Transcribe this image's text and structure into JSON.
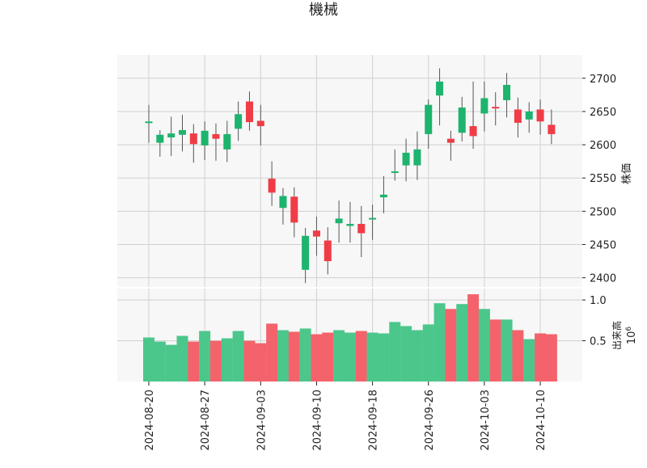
{
  "title": "機械",
  "colors": {
    "up": "#1db46e",
    "down": "#f03c46",
    "up_volume": "#4cc78c",
    "down_volume": "#f4636b",
    "panel_bg": "#f7f7f7",
    "grid": "#d0d0d0"
  },
  "chart_data": [
    {
      "type": "candlestick",
      "ylabel": "株価",
      "ylim": [
        2385,
        2735
      ],
      "yticks": [
        2400,
        2450,
        2500,
        2550,
        2600,
        2650,
        2700
      ],
      "ytick_side": "right",
      "grid": true,
      "dates": [
        "2024-08-20",
        "2024-08-21",
        "2024-08-22",
        "2024-08-23",
        "2024-08-26",
        "2024-08-27",
        "2024-08-28",
        "2024-08-29",
        "2024-08-30",
        "2024-09-02",
        "2024-09-03",
        "2024-09-04",
        "2024-09-05",
        "2024-09-06",
        "2024-09-09",
        "2024-09-10",
        "2024-09-11",
        "2024-09-12",
        "2024-09-13",
        "2024-09-17",
        "2024-09-18",
        "2024-09-19",
        "2024-09-20",
        "2024-09-24",
        "2024-09-25",
        "2024-09-26",
        "2024-09-27",
        "2024-09-30",
        "2024-10-01",
        "2024-10-02",
        "2024-10-03",
        "2024-10-04",
        "2024-10-07",
        "2024-10-08",
        "2024-10-09",
        "2024-10-10",
        "2024-10-11"
      ],
      "open": [
        2633,
        2603,
        2611,
        2615,
        2617,
        2599,
        2616,
        2593,
        2624,
        2665,
        2636,
        2549,
        2505,
        2522,
        2412,
        2471,
        2456,
        2482,
        2478,
        2481,
        2488,
        2521,
        2558,
        2569,
        2569,
        2616,
        2674,
        2609,
        2618,
        2628,
        2647,
        2657,
        2667,
        2653,
        2638,
        2653,
        2630
      ],
      "high": [
        2660,
        2622,
        2642,
        2645,
        2631,
        2635,
        2632,
        2636,
        2665,
        2680,
        2660,
        2575,
        2535,
        2536,
        2475,
        2492,
        2476,
        2516,
        2514,
        2508,
        2510,
        2553,
        2593,
        2609,
        2620,
        2668,
        2715,
        2621,
        2672,
        2695,
        2695,
        2679,
        2708,
        2671,
        2664,
        2668,
        2653
      ],
      "low": [
        2603,
        2582,
        2583,
        2590,
        2573,
        2577,
        2576,
        2574,
        2606,
        2621,
        2599,
        2508,
        2480,
        2461,
        2392,
        2433,
        2405,
        2453,
        2453,
        2431,
        2457,
        2497,
        2546,
        2545,
        2547,
        2594,
        2629,
        2576,
        2605,
        2594,
        2620,
        2629,
        2641,
        2611,
        2618,
        2615,
        2601
      ],
      "close": [
        2635,
        2615,
        2617,
        2622,
        2601,
        2621,
        2609,
        2616,
        2646,
        2634,
        2628,
        2528,
        2523,
        2483,
        2463,
        2462,
        2425,
        2489,
        2481,
        2467,
        2490,
        2525,
        2560,
        2588,
        2593,
        2660,
        2695,
        2603,
        2656,
        2613,
        2670,
        2655,
        2690,
        2633,
        2650,
        2635,
        2616
      ]
    },
    {
      "type": "bar",
      "ylabel": "出来高",
      "unit_exponent": "10^6",
      "unit_base": "10",
      "unit_power": "6",
      "ylim": [
        0,
        1.15
      ],
      "yticks": [
        0.5,
        1.0
      ],
      "ytick_labels": [
        "0.5",
        "1.0"
      ],
      "ytick_side": "right",
      "grid": true,
      "values": [
        0.54,
        0.49,
        0.45,
        0.56,
        0.49,
        0.62,
        0.5,
        0.53,
        0.62,
        0.5,
        0.47,
        0.71,
        0.63,
        0.61,
        0.65,
        0.58,
        0.6,
        0.63,
        0.6,
        0.62,
        0.6,
        0.59,
        0.73,
        0.68,
        0.63,
        0.7,
        0.96,
        0.89,
        0.95,
        1.07,
        0.89,
        0.76,
        0.76,
        0.63,
        0.52,
        0.59,
        0.58
      ],
      "xtick_labels": [
        "2024-08-20",
        "2024-08-27",
        "2024-09-03",
        "2024-09-10",
        "2024-09-18",
        "2024-09-26",
        "2024-10-03",
        "2024-10-10"
      ],
      "xtick_indices": [
        0,
        5,
        10,
        15,
        20,
        25,
        30,
        35
      ]
    }
  ]
}
